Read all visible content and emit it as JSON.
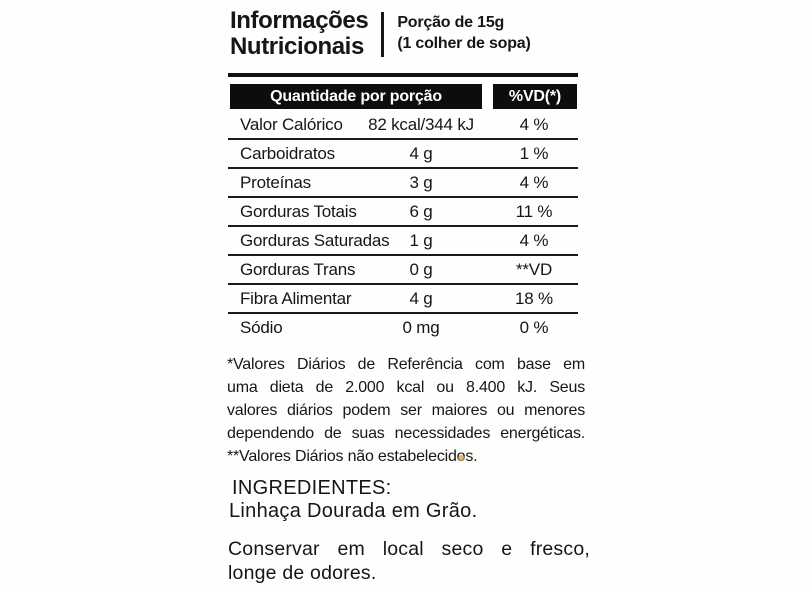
{
  "colors": {
    "ink": "#161616",
    "paper": "#ffffff",
    "header_box_bg": "#0d0d0d",
    "header_box_text": "#ffffff",
    "scan_speck": "#d8a055"
  },
  "header": {
    "title_line1": "Informações",
    "title_line2": "Nutricionais",
    "portion_line1": "Porção de 15g",
    "portion_line2": "(1 colher de sopa)"
  },
  "table": {
    "column_headers": {
      "quantity": "Quantidade por porção",
      "vd": "%VD(*)"
    },
    "rows": [
      {
        "name": "Valor Calórico",
        "value": "82 kcal/344 kJ",
        "vd": "4 %"
      },
      {
        "name": "Carboidratos",
        "value": "4 g",
        "vd": "1 %"
      },
      {
        "name": "Proteínas",
        "value": "3 g",
        "vd": "4 %"
      },
      {
        "name": "Gorduras Totais",
        "value": "6 g",
        "vd": "11 %"
      },
      {
        "name": "Gorduras Saturadas",
        "value": "1 g",
        "vd": "4 %"
      },
      {
        "name": "Gorduras Trans",
        "value": "0 g",
        "vd": "**VD"
      },
      {
        "name": "Fibra Alimentar",
        "value": "4 g",
        "vd": "18 %"
      },
      {
        "name": "Sódio",
        "value": "0 mg",
        "vd": "0 %"
      }
    ]
  },
  "footnote": {
    "lines": [
      "*Valores Diários de Referência com base em",
      "uma dieta de 2.000 kcal ou 8.400 kJ. Seus",
      "valores diários podem ser maiores ou menores",
      "dependendo de suas necessidades energéticas.",
      "**Valores Diários não estabelecidos."
    ]
  },
  "ingredients": {
    "title": "INGREDIENTES:",
    "text": "Linhaça Dourada em Grão."
  },
  "storage": {
    "line1": "Conservar em local seco e fresco,",
    "line2": "longe de odores."
  }
}
